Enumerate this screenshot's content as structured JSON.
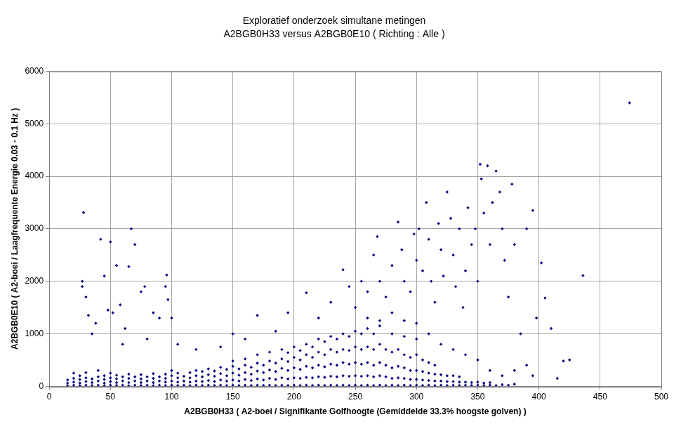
{
  "chart_data": {
    "type": "scatter",
    "title": "Exploratief onderzoek simultane metingen",
    "subtitle": "A2BGB0H33 versus A2BGB0E10 ( Richting : Alle )",
    "x_label": "A2BGB0H33 ( A2-boei / Signifikante Golfhoogte (Gemiddelde 33.3% hoogste golven) )",
    "y_label": "A2BGB0E10 ( A2-boei / Laagfrequente Energie 0.03 - 0.1 Hz )",
    "color": "#000080",
    "marker": "diamond",
    "grid": true,
    "xlim": [
      0,
      500
    ],
    "xticks": [
      0,
      50,
      100,
      150,
      200,
      250,
      300,
      350,
      400,
      450,
      500
    ],
    "ylim": [
      0,
      6000
    ],
    "yticks": [
      0,
      1000,
      2000,
      3000,
      4000,
      5000,
      6000
    ],
    "x": [
      15,
      15,
      15,
      20,
      20,
      20,
      20,
      25,
      25,
      25,
      25,
      30,
      30,
      30,
      30,
      35,
      35,
      35,
      40,
      40,
      40,
      40,
      45,
      45,
      45,
      45,
      50,
      50,
      50,
      50,
      55,
      55,
      55,
      55,
      60,
      60,
      60,
      65,
      65,
      65,
      65,
      70,
      70,
      70,
      75,
      75,
      75,
      75,
      80,
      80,
      80,
      85,
      85,
      85,
      85,
      90,
      90,
      90,
      95,
      95,
      95,
      95,
      100,
      100,
      100,
      100,
      105,
      105,
      105,
      105,
      110,
      110,
      110,
      115,
      115,
      115,
      115,
      120,
      120,
      120,
      120,
      125,
      125,
      125,
      125,
      130,
      130,
      130,
      130,
      135,
      135,
      135,
      135,
      140,
      140,
      140,
      140,
      145,
      145,
      145,
      145,
      150,
      150,
      150,
      150,
      150,
      155,
      155,
      155,
      155,
      160,
      160,
      160,
      160,
      160,
      165,
      165,
      165,
      165,
      170,
      170,
      170,
      170,
      170,
      175,
      175,
      175,
      175,
      180,
      180,
      180,
      180,
      180,
      185,
      185,
      185,
      185,
      190,
      190,
      190,
      190,
      190,
      195,
      195,
      195,
      195,
      195,
      200,
      200,
      200,
      200,
      200,
      205,
      205,
      205,
      205,
      205,
      210,
      210,
      210,
      210,
      210,
      215,
      215,
      215,
      215,
      215,
      220,
      220,
      220,
      220,
      220,
      225,
      225,
      225,
      225,
      225,
      230,
      230,
      230,
      230,
      230,
      235,
      235,
      235,
      235,
      235,
      240,
      240,
      240,
      240,
      240,
      245,
      245,
      245,
      245,
      245,
      250,
      250,
      250,
      250,
      250,
      255,
      255,
      255,
      255,
      255,
      260,
      260,
      260,
      260,
      260,
      265,
      265,
      265,
      265,
      265,
      270,
      270,
      270,
      270,
      270,
      275,
      275,
      275,
      275,
      280,
      280,
      280,
      280,
      280,
      285,
      285,
      285,
      285,
      290,
      290,
      290,
      290,
      290,
      295,
      295,
      295,
      295,
      300,
      300,
      300,
      300,
      300,
      305,
      305,
      305,
      305,
      310,
      310,
      310,
      310,
      315,
      315,
      315,
      315,
      320,
      320,
      320,
      325,
      325,
      325,
      330,
      330,
      330,
      335,
      335,
      335,
      340,
      340,
      345,
      345,
      350,
      350,
      355,
      355,
      360,
      360,
      365,
      370,
      375,
      380,
      28,
      27,
      27,
      30,
      32,
      35,
      38,
      42,
      45,
      50,
      48,
      52,
      55,
      58,
      62,
      67,
      70,
      65,
      75,
      78,
      85,
      90,
      95,
      96,
      97,
      100,
      60,
      80,
      105,
      120,
      140,
      150,
      160,
      170,
      185,
      195,
      210,
      220,
      230,
      240,
      245,
      250,
      255,
      260,
      265,
      268,
      270,
      275,
      280,
      285,
      288,
      290,
      295,
      298,
      300,
      302,
      305,
      308,
      310,
      312,
      315,
      318,
      320,
      322,
      325,
      328,
      330,
      332,
      335,
      338,
      340,
      342,
      345,
      348,
      350,
      352,
      353,
      355,
      358,
      360,
      362,
      365,
      368,
      370,
      372,
      375,
      378,
      380,
      385,
      390,
      395,
      398,
      402,
      405,
      410,
      415,
      420,
      425,
      436,
      474,
      260,
      270,
      280,
      290,
      300,
      310,
      320,
      330,
      340,
      350,
      360,
      370,
      380,
      390,
      395
    ],
    "values": [
      10,
      60,
      120,
      20,
      80,
      150,
      250,
      10,
      60,
      130,
      200,
      20,
      90,
      160,
      260,
      15,
      70,
      140,
      20,
      100,
      180,
      300,
      10,
      60,
      130,
      200,
      20,
      90,
      160,
      250,
      15,
      70,
      140,
      210,
      20,
      100,
      180,
      10,
      70,
      150,
      230,
      20,
      100,
      180,
      15,
      70,
      140,
      220,
      20,
      100,
      180,
      10,
      70,
      150,
      240,
      20,
      100,
      180,
      15,
      80,
      150,
      230,
      20,
      100,
      200,
      300,
      15,
      80,
      160,
      250,
      20,
      100,
      190,
      15,
      80,
      160,
      260,
      20,
      100,
      200,
      300,
      15,
      90,
      180,
      280,
      20,
      110,
      220,
      330,
      15,
      90,
      190,
      290,
      20,
      120,
      240,
      360,
      15,
      100,
      200,
      320,
      20,
      120,
      250,
      380,
      480,
      15,
      100,
      210,
      330,
      20,
      130,
      260,
      400,
      520,
      15,
      110,
      230,
      360,
      20,
      140,
      290,
      440,
      600,
      15,
      120,
      260,
      400,
      20,
      150,
      310,
      480,
      650,
      15,
      130,
      280,
      440,
      20,
      160,
      340,
      520,
      700,
      15,
      140,
      300,
      470,
      640,
      20,
      160,
      350,
      550,
      750,
      15,
      150,
      320,
      500,
      680,
      20,
      170,
      380,
      600,
      800,
      15,
      160,
      350,
      550,
      750,
      20,
      180,
      400,
      650,
      900,
      15,
      170,
      370,
      600,
      850,
      20,
      190,
      420,
      700,
      950,
      15,
      180,
      400,
      650,
      900,
      20,
      200,
      450,
      700,
      1000,
      15,
      190,
      420,
      680,
      950,
      20,
      200,
      450,
      750,
      1050,
      15,
      190,
      420,
      700,
      1000,
      20,
      200,
      450,
      750,
      1100,
      15,
      180,
      400,
      700,
      1000,
      20,
      200,
      450,
      800,
      1150,
      15,
      180,
      400,
      700,
      20,
      150,
      350,
      650,
      1000,
      15,
      160,
      380,
      700,
      20,
      150,
      350,
      600,
      950,
      15,
      130,
      300,
      550,
      20,
      130,
      300,
      600,
      900,
      15,
      120,
      280,
      500,
      20,
      110,
      250,
      450,
      15,
      100,
      230,
      400,
      20,
      100,
      220,
      15,
      90,
      200,
      20,
      90,
      200,
      15,
      80,
      180,
      20,
      80,
      15,
      70,
      20,
      80,
      15,
      60,
      20,
      70,
      15,
      30,
      20,
      40,
      3310,
      2000,
      1900,
      1700,
      1350,
      1000,
      1200,
      2800,
      2100,
      2750,
      1450,
      1400,
      2300,
      1550,
      1100,
      3000,
      2700,
      2280,
      1800,
      1900,
      1400,
      1300,
      1900,
      2120,
      1650,
      1300,
      800,
      900,
      800,
      700,
      750,
      1000,
      900,
      1350,
      1050,
      1400,
      1780,
      1300,
      1600,
      2220,
      1900,
      1500,
      2000,
      1800,
      2500,
      2850,
      2000,
      1700,
      2300,
      3130,
      2600,
      2000,
      1800,
      2900,
      2400,
      3000,
      2200,
      3500,
      2800,
      2000,
      1600,
      3100,
      2600,
      2100,
      3700,
      3200,
      2500,
      1900,
      3000,
      1500,
      2200,
      3400,
      2700,
      3000,
      2000,
      4230,
      3950,
      3300,
      4200,
      2700,
      3500,
      4100,
      3700,
      3000,
      2400,
      1700,
      3850,
      2700,
      1000,
      3000,
      3350,
      1300,
      2350,
      1680,
      1100,
      150,
      480,
      500,
      2110,
      5400,
      1300,
      1250,
      1400,
      1250,
      1200,
      1000,
      800,
      700,
      600,
      500,
      300,
      200,
      300,
      400,
      200
    ]
  }
}
